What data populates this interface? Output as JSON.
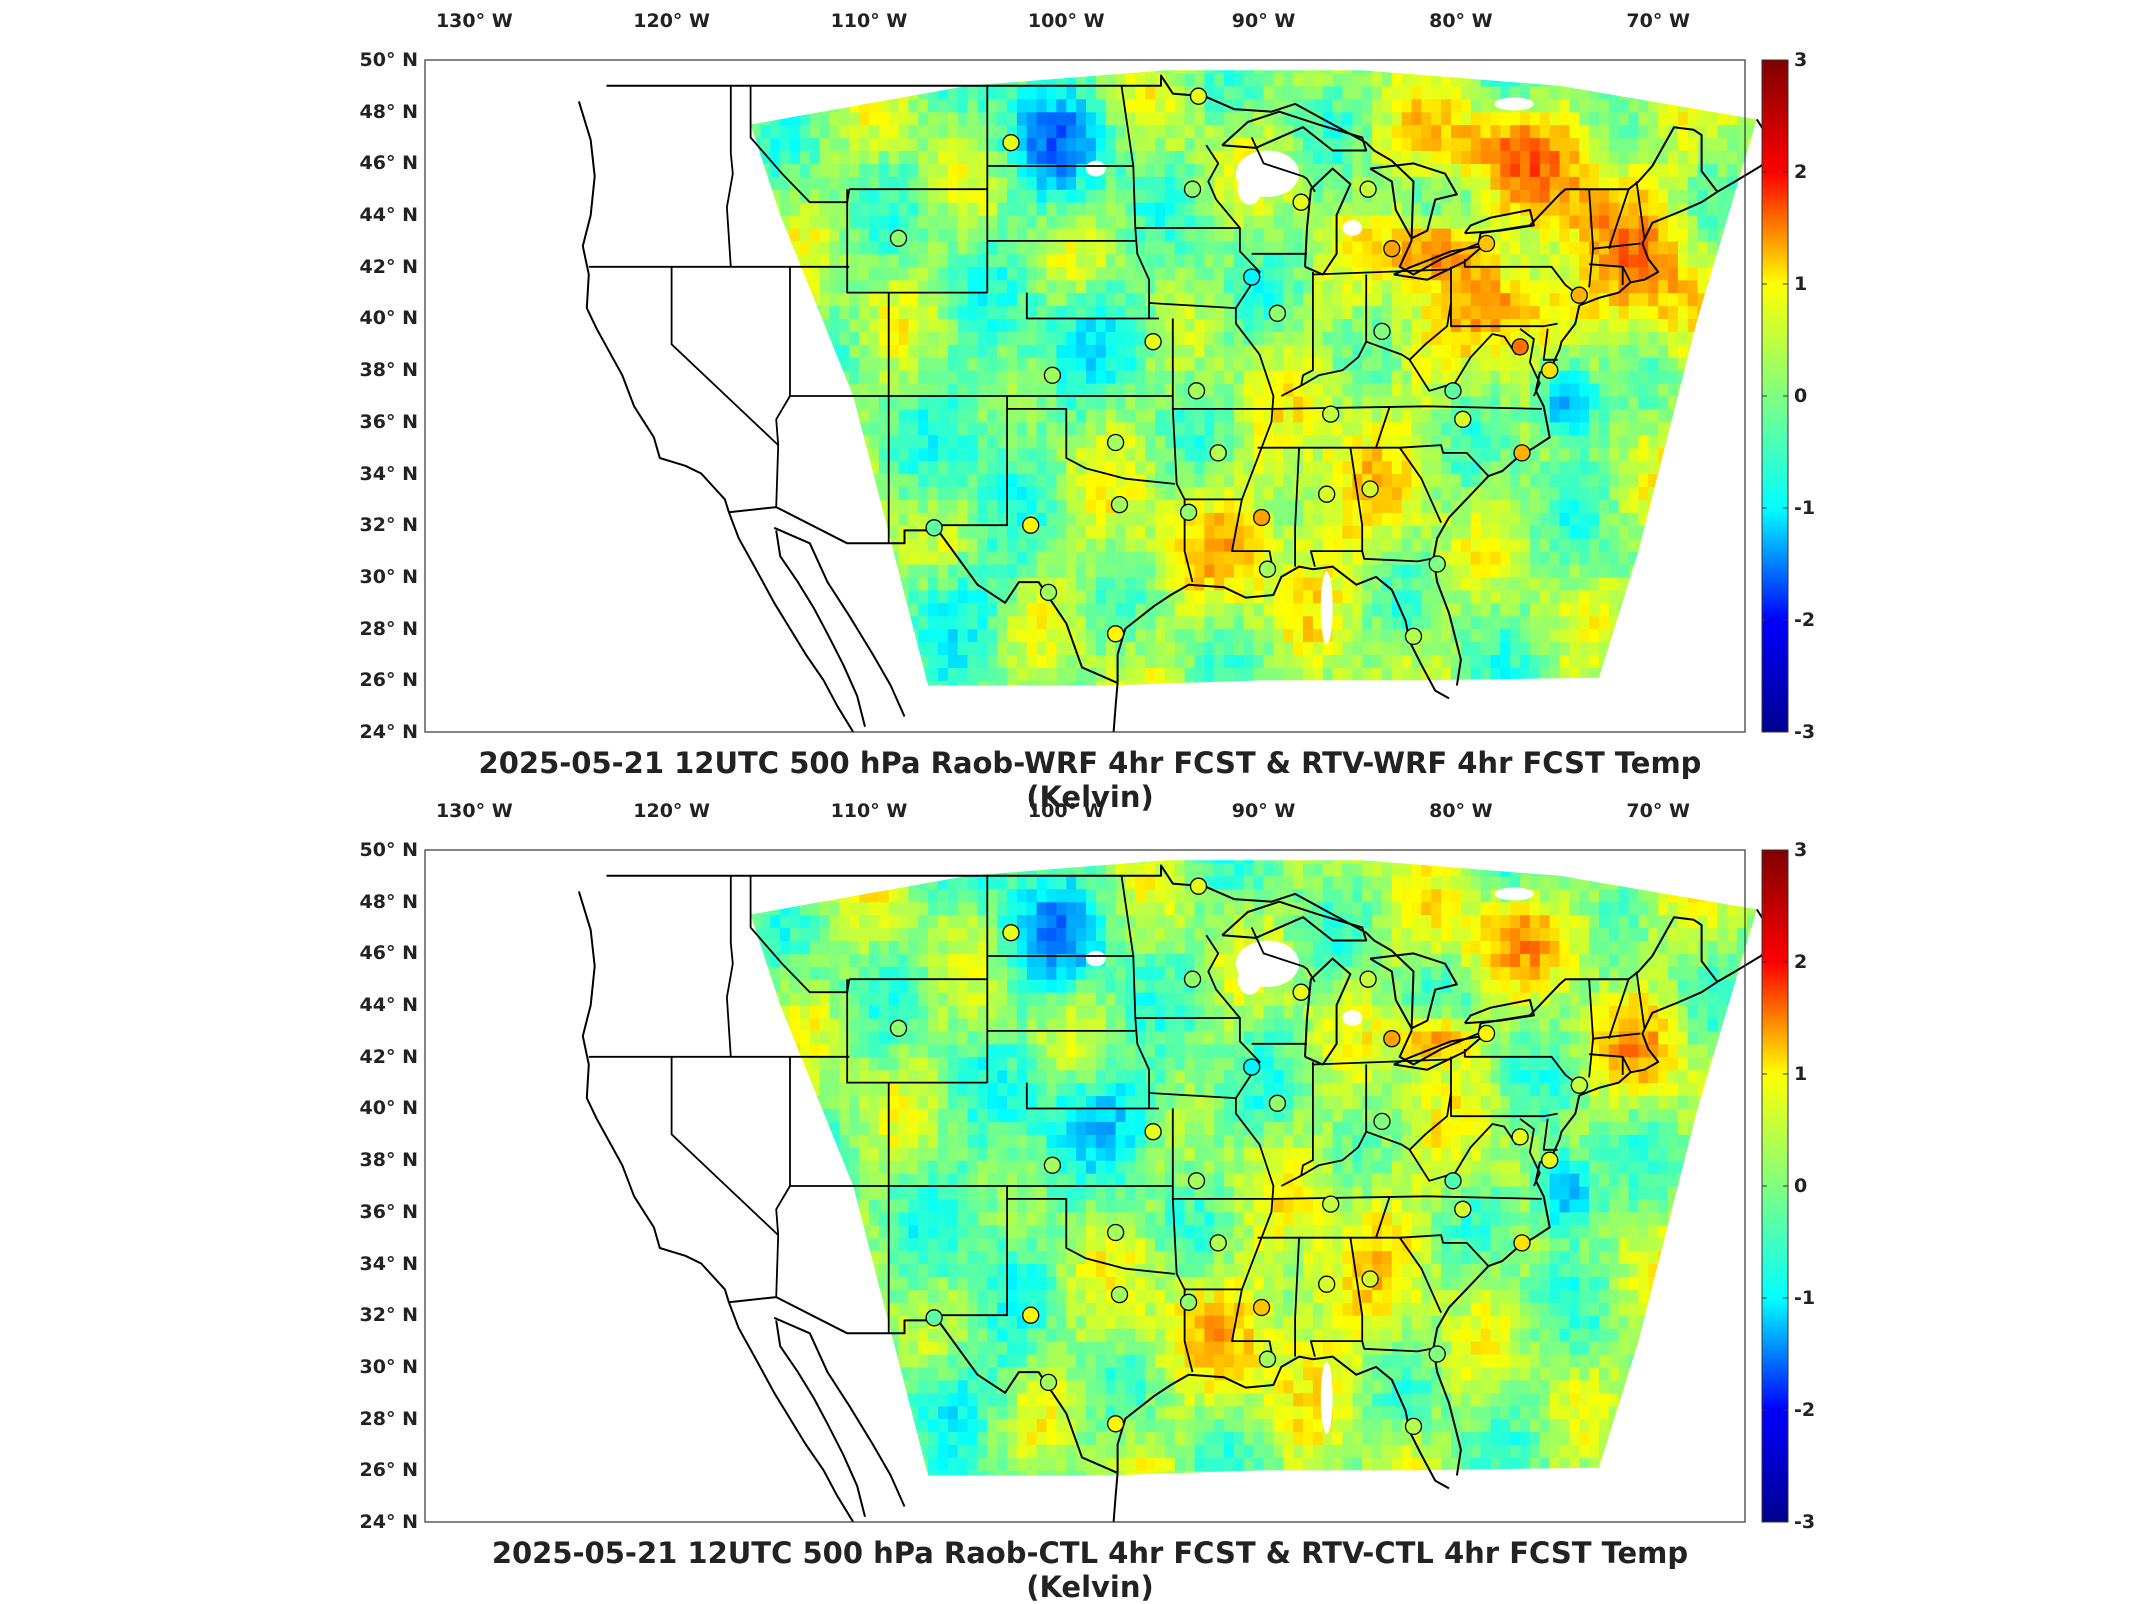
{
  "panels": [
    {
      "title": "2025-05-21 12UTC 500 hPa Raob-WRF 4hr FCST & RTV-WRF 4hr FCST Temp (Kelvin)",
      "variant": "wrf"
    },
    {
      "title": "2025-05-21 12UTC 500 hPa Raob-CTL 4hr FCST & RTV-CTL 4hr FCST Temp (Kelvin)",
      "variant": "ctl"
    }
  ],
  "lon_labels": [
    "130° W",
    "120° W",
    "110° W",
    "100° W",
    "90° W",
    "80° W",
    "70° W"
  ],
  "lon_values": [
    -130,
    -120,
    -110,
    -100,
    -90,
    -80,
    -70
  ],
  "lat_labels": [
    "50° N",
    "48° N",
    "46° N",
    "44° N",
    "42° N",
    "40° N",
    "38° N",
    "36° N",
    "34° N",
    "32° N",
    "30° N",
    "28° N",
    "26° N",
    "24° N"
  ],
  "lat_values": [
    50,
    48,
    46,
    44,
    42,
    40,
    38,
    36,
    34,
    32,
    30,
    28,
    26,
    24
  ],
  "colorbar": {
    "ticks": [
      "3",
      "2",
      "1",
      "0",
      "-1",
      "-2",
      "-3"
    ],
    "tick_values": [
      3,
      2,
      1,
      0,
      -1,
      -2,
      -3
    ],
    "range": [
      -3,
      3
    ],
    "colormap": "jet",
    "colors": [
      "#00008f",
      "#0000ff",
      "#00ffff",
      "#80ff80",
      "#ffff00",
      "#ff0000",
      "#800000"
    ]
  },
  "raob_stations": [
    {
      "lon": -93.3,
      "lat": 48.6,
      "wrf": 0.6,
      "ctl": 0.6
    },
    {
      "lon": -102.8,
      "lat": 46.8,
      "wrf": 0.6,
      "ctl": 0.6
    },
    {
      "lon": -93.6,
      "lat": 45.0,
      "wrf": 0.1,
      "ctl": 0.1
    },
    {
      "lon": -88.1,
      "lat": 44.5,
      "wrf": 0.6,
      "ctl": 0.6
    },
    {
      "lon": -84.7,
      "lat": 45.0,
      "wrf": 0.4,
      "ctl": 0.4
    },
    {
      "lon": -108.5,
      "lat": 43.1,
      "wrf": 0.1,
      "ctl": 0.1
    },
    {
      "lon": -83.5,
      "lat": 42.7,
      "wrf": 1.3,
      "ctl": 1.3
    },
    {
      "lon": -78.7,
      "lat": 42.9,
      "wrf": 1.1,
      "ctl": 0.8
    },
    {
      "lon": -90.6,
      "lat": 41.6,
      "wrf": -0.8,
      "ctl": -0.8
    },
    {
      "lon": -89.3,
      "lat": 40.2,
      "wrf": 0.1,
      "ctl": 0.1
    },
    {
      "lon": -84.0,
      "lat": 39.5,
      "wrf": 0.0,
      "ctl": 0.0
    },
    {
      "lon": -74.0,
      "lat": 40.9,
      "wrf": 1.2,
      "ctl": 0.4
    },
    {
      "lon": -95.6,
      "lat": 39.1,
      "wrf": 0.6,
      "ctl": 0.6
    },
    {
      "lon": -77.0,
      "lat": 38.9,
      "wrf": 1.6,
      "ctl": 0.6
    },
    {
      "lon": -75.5,
      "lat": 38.0,
      "wrf": 0.9,
      "ctl": 0.6
    },
    {
      "lon": -100.7,
      "lat": 37.8,
      "wrf": 0.2,
      "ctl": 0.2
    },
    {
      "lon": -80.4,
      "lat": 37.2,
      "wrf": -0.2,
      "ctl": -0.3
    },
    {
      "lon": -93.4,
      "lat": 37.2,
      "wrf": 0.2,
      "ctl": 0.2
    },
    {
      "lon": -86.6,
      "lat": 36.3,
      "wrf": 0.4,
      "ctl": 0.4
    },
    {
      "lon": -79.9,
      "lat": 36.1,
      "wrf": 0.5,
      "ctl": 0.5
    },
    {
      "lon": -97.5,
      "lat": 35.2,
      "wrf": 0.2,
      "ctl": 0.2
    },
    {
      "lon": -92.3,
      "lat": 34.8,
      "wrf": 0.3,
      "ctl": 0.3
    },
    {
      "lon": -76.9,
      "lat": 34.8,
      "wrf": 1.2,
      "ctl": 0.9
    },
    {
      "lon": -84.6,
      "lat": 33.4,
      "wrf": 0.5,
      "ctl": 0.5
    },
    {
      "lon": -86.8,
      "lat": 33.2,
      "wrf": 0.5,
      "ctl": 0.5
    },
    {
      "lon": -97.3,
      "lat": 32.8,
      "wrf": 0.2,
      "ctl": 0.2
    },
    {
      "lon": -93.8,
      "lat": 32.5,
      "wrf": 0.1,
      "ctl": 0.1
    },
    {
      "lon": -90.1,
      "lat": 32.3,
      "wrf": 1.3,
      "ctl": 1.1
    },
    {
      "lon": -101.8,
      "lat": 32.0,
      "wrf": 0.8,
      "ctl": 0.8
    },
    {
      "lon": -106.7,
      "lat": 31.9,
      "wrf": -0.2,
      "ctl": -0.2
    },
    {
      "lon": -81.2,
      "lat": 30.5,
      "wrf": 0.0,
      "ctl": 0.0
    },
    {
      "lon": -89.8,
      "lat": 30.3,
      "wrf": 0.2,
      "ctl": 0.2
    },
    {
      "lon": -100.9,
      "lat": 29.4,
      "wrf": 0.2,
      "ctl": 0.2
    },
    {
      "lon": -97.5,
      "lat": 27.8,
      "wrf": 0.8,
      "ctl": 0.8
    },
    {
      "lon": -82.4,
      "lat": 27.7,
      "wrf": 0.3,
      "ctl": 0.3
    }
  ]
}
